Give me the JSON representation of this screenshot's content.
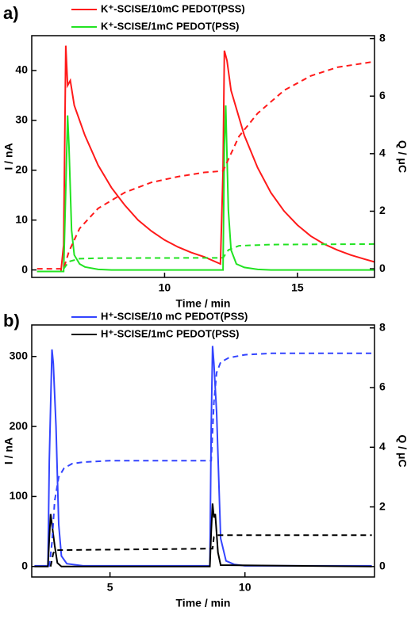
{
  "chart_data": [
    {
      "type": "line",
      "panel_label": "a)",
      "xlabel": "Time / min",
      "ylabel": "I / nA",
      "y2label": "Q / μC",
      "xlim": [
        5,
        17.9
      ],
      "xticks": [
        10,
        15
      ],
      "ylim": [
        -1.5,
        47
      ],
      "yticks": [
        0,
        10,
        20,
        30,
        40
      ],
      "y2lim": [
        -0.3,
        8.1
      ],
      "y2ticks": [
        0,
        2,
        4,
        6,
        8
      ],
      "series": [
        {
          "name": "K⁺-SCISE/10mC PEDOT(PSS)",
          "color": "#ff1a1a",
          "x": [
            5.2,
            6.1,
            6.2,
            6.28,
            6.35,
            6.45,
            6.6,
            7,
            7.5,
            8,
            8.5,
            9,
            9.5,
            10,
            10.5,
            11,
            11.5,
            12.1,
            12.2,
            12.25,
            12.35,
            12.5,
            13,
            13.5,
            14,
            14.5,
            15,
            15.5,
            16,
            16.5,
            17,
            17.5,
            17.9
          ],
          "values": [
            -0.3,
            -0.3,
            5,
            45,
            37,
            38,
            33,
            27,
            21,
            16.5,
            13,
            10,
            7.8,
            6,
            4.6,
            3.5,
            2.6,
            1.2,
            20,
            44,
            42,
            36,
            27,
            20.5,
            15.5,
            11.8,
            9,
            6.8,
            5.2,
            4,
            3,
            2.2,
            1.6
          ]
        },
        {
          "name": "K⁺-SCISE/1mC PEDOT(PSS)",
          "color": "#22e322",
          "x": [
            5.2,
            6.2,
            6.3,
            6.35,
            6.4,
            6.5,
            6.6,
            6.8,
            7,
            7.5,
            8,
            12.1,
            12.2,
            12.25,
            12.3,
            12.4,
            12.5,
            12.7,
            13,
            13.5,
            14,
            17.9
          ],
          "values": [
            -0.3,
            -0.3,
            20,
            31,
            25,
            8,
            3,
            1.2,
            0.6,
            0.1,
            0,
            0,
            0,
            25,
            33,
            12,
            4,
            1.2,
            0.5,
            0.1,
            0,
            0
          ]
        },
        {
          "color": "#ff1a1a",
          "dashed": true,
          "axis": "y2",
          "x": [
            5.2,
            6.2,
            6.4,
            6.8,
            7.5,
            8.5,
            9.5,
            10.5,
            11.5,
            12.2,
            12.4,
            12.8,
            13.5,
            14.5,
            15.5,
            16.5,
            17.9
          ],
          "values": [
            0,
            0,
            0.6,
            1.4,
            2.1,
            2.65,
            3.0,
            3.2,
            3.35,
            3.4,
            3.8,
            4.6,
            5.4,
            6.2,
            6.7,
            7.0,
            7.2
          ]
        },
        {
          "color": "#22e322",
          "dashed": true,
          "axis": "y2",
          "x": [
            6.2,
            6.4,
            6.8,
            7.5,
            12.2,
            12.4,
            12.8,
            14,
            17.9
          ],
          "values": [
            0,
            0.25,
            0.35,
            0.37,
            0.38,
            0.65,
            0.8,
            0.84,
            0.86
          ]
        }
      ]
    },
    {
      "type": "line",
      "panel_label": "b)",
      "xlabel": "Time / min",
      "ylabel": "I / nA",
      "y2label": "Q / μC",
      "xlim": [
        2.1,
        14.8
      ],
      "xticks": [
        5,
        10
      ],
      "ylim": [
        -15,
        345
      ],
      "yticks": [
        0,
        100,
        200,
        300
      ],
      "y2lim": [
        -0.35,
        8.1
      ],
      "y2ticks": [
        0,
        2,
        4,
        6,
        8
      ],
      "series": [
        {
          "name": "H⁺-SCISE/10 mC PEDOT(PSS)",
          "color": "#3344ff",
          "x": [
            2.2,
            2.7,
            2.75,
            2.85,
            2.9,
            3.0,
            3.1,
            3.2,
            3.4,
            4,
            8.7,
            8.75,
            8.8,
            8.85,
            8.95,
            9.1,
            9.3,
            9.6,
            10,
            14.7
          ],
          "values": [
            1,
            1,
            150,
            310,
            290,
            200,
            60,
            15,
            4,
            1,
            1,
            200,
            315,
            290,
            220,
            40,
            8,
            3,
            1,
            1
          ]
        },
        {
          "name": "H⁺-SCISE/1mC PEDOT(PSS)",
          "color": "#000000",
          "x": [
            2.2,
            2.7,
            2.75,
            2.8,
            2.85,
            2.95,
            3.05,
            3.2,
            8.7,
            8.75,
            8.8,
            8.85,
            8.9,
            9.0,
            9.1,
            14.7
          ],
          "values": [
            0,
            0,
            40,
            75,
            60,
            30,
            5,
            0,
            0,
            50,
            90,
            70,
            75,
            20,
            2,
            0
          ]
        },
        {
          "color": "#3344ff",
          "dashed": true,
          "axis": "y2",
          "x": [
            2.75,
            2.85,
            2.95,
            3.1,
            3.3,
            3.6,
            4,
            5,
            8.75,
            8.85,
            8.95,
            9.1,
            9.4,
            10,
            11,
            14.7
          ],
          "values": [
            0,
            0.8,
            2.2,
            3.0,
            3.3,
            3.45,
            3.5,
            3.55,
            3.55,
            5.5,
            6.5,
            6.85,
            7.0,
            7.1,
            7.15,
            7.15
          ]
        },
        {
          "color": "#000000",
          "dashed": true,
          "axis": "y2",
          "x": [
            2.8,
            2.9,
            3.0,
            8.8,
            8.85,
            8.95,
            14.7
          ],
          "values": [
            0,
            0.45,
            0.55,
            0.6,
            1.0,
            1.05,
            1.05
          ]
        }
      ]
    }
  ]
}
